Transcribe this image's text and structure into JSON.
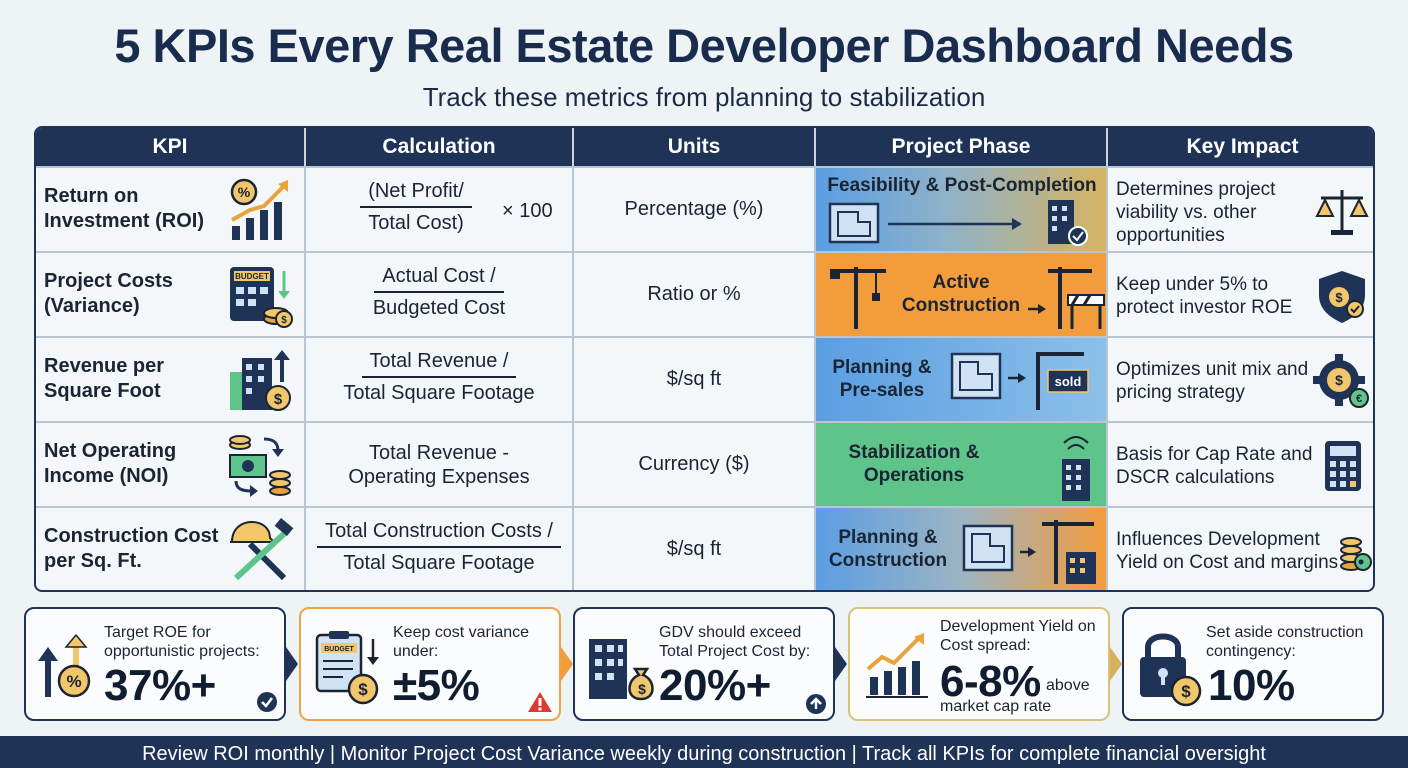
{
  "header": {
    "title": "5 KPIs Every Real Estate Developer Dashboard Needs",
    "subtitle": "Track these metrics from planning to stabilization"
  },
  "table": {
    "columns": [
      "KPI",
      "Calculation",
      "Units",
      "Project Phase",
      "Key Impact"
    ],
    "rows": [
      {
        "kpi": "Return on Investment (ROI)",
        "calc_num": "(Net Profit/",
        "calc_den": "Total Cost)",
        "calc_suffix": "× 100",
        "units": "Percentage (%)",
        "phase": "Feasibility & Post-Completion",
        "impact": "Determines project viability vs. other opportunities",
        "icon": "roi-chart-icon",
        "impact_icon": "scale-icon"
      },
      {
        "kpi": "Project Costs (Variance)",
        "calc_num": "Actual Cost /",
        "calc_den": "Budgeted Cost",
        "units": "Ratio or %",
        "phase": "Active Construction",
        "impact": "Keep under 5% to protect investor ROE",
        "icon": "budget-calculator-icon",
        "impact_icon": "shield-money-icon"
      },
      {
        "kpi": "Revenue per Square Foot",
        "calc_num": "Total Revenue /",
        "calc_den": "Total Square Footage",
        "units": "$/sq ft",
        "phase": "Planning & Pre-sales",
        "phase_sign": "sold",
        "impact": "Optimizes unit mix and pricing strategy",
        "icon": "building-dollar-icon",
        "impact_icon": "gear-currency-icon"
      },
      {
        "kpi": "Net Operating Income (NOI)",
        "calc_line1": "Total Revenue -",
        "calc_line2": "Operating Expenses",
        "units": "Currency ($)",
        "phase": "Stabilization & Operations",
        "impact": "Basis for Cap Rate and DSCR calculations",
        "icon": "cash-flow-icon",
        "impact_icon": "calculator-icon"
      },
      {
        "kpi": "Construction Cost per Sq. Ft.",
        "calc_num": "Total Construction Costs /",
        "calc_den": "Total Square Footage",
        "units": "$/sq ft",
        "phase": "Planning & Construction",
        "impact": "Influences Development Yield on Cost and margins",
        "icon": "tools-icon",
        "impact_icon": "coins-key-icon"
      }
    ]
  },
  "cards": [
    {
      "label": "Target ROE for opportunistic projects:",
      "value": "37%+"
    },
    {
      "label": "Keep cost variance under:",
      "value": "±5%",
      "badge": "BUDGET"
    },
    {
      "label": "GDV should exceed Total Project Cost by:",
      "value": "20%+"
    },
    {
      "label": "Development Yield on Cost spread:",
      "value": "6-8%",
      "suffix": "above",
      "note": "market cap rate"
    },
    {
      "label": "Set aside construction contingency:",
      "value": "10%"
    }
  ],
  "icon_badges": {
    "budget": "BUDGET"
  },
  "colors": {
    "navy": "#1f3357",
    "orange": "#f39c3c",
    "blue": "#5b9ee3",
    "green": "#5fc48a",
    "gold": "#d4b15a"
  },
  "footer": "Review ROI monthly | Monitor Project Cost Variance weekly during construction | Track all KPIs for complete financial oversight"
}
